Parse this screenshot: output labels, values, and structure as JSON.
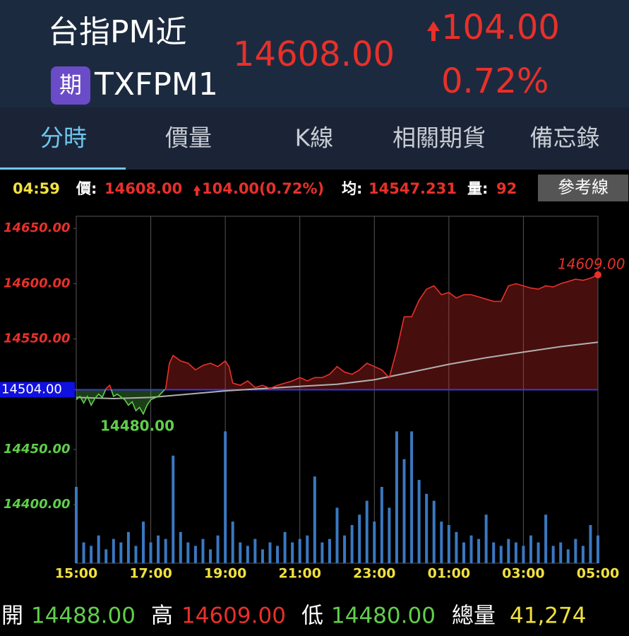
{
  "header": {
    "title": "台指PM近",
    "badge": "期",
    "code": "TXFPM1",
    "price": "14608.00",
    "change": "104.00",
    "change_pct": "0.72%"
  },
  "tabs": [
    "分時",
    "價量",
    "K線",
    "相關期貨",
    "備忘錄"
  ],
  "info": {
    "time": "04:59",
    "price_label": "價:",
    "price": "14608.00",
    "change": "104.00(0.72%)",
    "avg_label": "均:",
    "avg": "14547.231",
    "vol_label": "量:",
    "volume": "92",
    "button": "參考線"
  },
  "chart_data": {
    "type": "line",
    "xlim": [
      0,
      14
    ],
    "xticks": [
      {
        "value": 0,
        "label": "15:00"
      },
      {
        "value": 2,
        "label": "17:00"
      },
      {
        "value": 4,
        "label": "19:00"
      },
      {
        "value": 6,
        "label": "21:00"
      },
      {
        "value": 8,
        "label": "23:00"
      },
      {
        "value": 10,
        "label": "01:00"
      },
      {
        "value": 12,
        "label": "03:00"
      },
      {
        "value": 14,
        "label": "05:00"
      }
    ],
    "ylim": [
      14347,
      14661
    ],
    "yticks": [
      {
        "value": 14650,
        "label": "14650.00"
      },
      {
        "value": 14600,
        "label": "14600.00"
      },
      {
        "value": 14550,
        "label": "14550.00"
      },
      {
        "value": 14450,
        "label": "14450.00"
      },
      {
        "value": 14400,
        "label": "14400.00"
      }
    ],
    "reference": {
      "value": 14504,
      "label": "14504.00",
      "color": "#3a3ad8"
    },
    "up_color": "#e8302a",
    "down_color": "#5fcf4a",
    "series": [
      {
        "x": [
          0,
          0.1,
          0.2,
          0.3,
          0.4,
          0.5,
          0.6,
          0.7,
          0.8,
          0.9,
          1.0,
          1.1,
          1.3,
          1.4,
          1.5,
          1.6,
          1.7,
          1.8,
          1.9,
          2.0,
          2.2,
          2.4,
          2.5,
          2.6,
          2.8,
          3.0,
          3.2,
          3.4,
          3.6,
          3.8,
          4.0,
          4.1,
          4.2,
          4.4,
          4.6,
          4.8,
          5.0,
          5.2,
          5.4,
          5.6,
          5.8,
          6.0,
          6.2,
          6.4,
          6.6,
          6.8,
          7.0,
          7.2,
          7.4,
          7.6,
          7.8,
          8.0,
          8.2,
          8.4,
          8.6,
          8.8,
          9.0,
          9.2,
          9.4,
          9.6,
          9.8,
          10.0,
          10.2,
          10.4,
          10.6,
          10.8,
          11.0,
          11.2,
          11.4,
          11.6,
          11.8,
          12.0,
          12.2,
          12.4,
          12.6,
          12.8,
          13.0,
          13.2,
          13.4,
          13.6,
          13.8,
          14.0
        ],
        "values": [
          14495,
          14498,
          14492,
          14498,
          14490,
          14496,
          14500,
          14497,
          14505,
          14508,
          14498,
          14500,
          14495,
          14490,
          14493,
          14485,
          14488,
          14482,
          14490,
          14495,
          14498,
          14505,
          14528,
          14535,
          14530,
          14528,
          14522,
          14526,
          14528,
          14525,
          14530,
          14525,
          14510,
          14508,
          14512,
          14506,
          14508,
          14505,
          14508,
          14510,
          14512,
          14515,
          14512,
          14515,
          14515,
          14518,
          14525,
          14520,
          14518,
          14522,
          14528,
          14525,
          14522,
          14515,
          14540,
          14570,
          14570,
          14585,
          14595,
          14598,
          14590,
          14592,
          14587,
          14590,
          14590,
          14588,
          14586,
          14584,
          14584,
          14598,
          14600,
          14598,
          14596,
          14595,
          14598,
          14597,
          14600,
          14602,
          14604,
          14603,
          14605,
          14608
        ]
      }
    ],
    "average": {
      "color": "#b0b0b0",
      "x": [
        0,
        1,
        2,
        3,
        4,
        5,
        6,
        7,
        8,
        9,
        10,
        11,
        12,
        13,
        14
      ],
      "values": [
        14497,
        14496,
        14497,
        14500,
        14503,
        14505,
        14507,
        14509,
        14513,
        14520,
        14527,
        14533,
        14538,
        14543,
        14547
      ]
    },
    "volume": {
      "color": "#3a78c0",
      "y2lim": [
        0,
        500
      ],
      "x": [
        0,
        0.2,
        0.4,
        0.6,
        0.8,
        1.0,
        1.2,
        1.4,
        1.6,
        1.8,
        2.0,
        2.2,
        2.4,
        2.6,
        2.8,
        3.0,
        3.2,
        3.4,
        3.6,
        3.8,
        4.0,
        4.2,
        4.4,
        4.6,
        4.8,
        5.0,
        5.2,
        5.4,
        5.6,
        5.8,
        6.0,
        6.2,
        6.4,
        6.6,
        6.8,
        7.0,
        7.2,
        7.4,
        7.6,
        7.8,
        8.0,
        8.2,
        8.4,
        8.6,
        8.8,
        9.0,
        9.2,
        9.4,
        9.6,
        9.8,
        10.0,
        10.2,
        10.4,
        10.6,
        10.8,
        11.0,
        11.2,
        11.4,
        11.6,
        11.8,
        12.0,
        12.2,
        12.4,
        12.6,
        12.8,
        13.0,
        13.2,
        13.4,
        13.6,
        13.8,
        14.0
      ],
      "values": [
        110,
        30,
        25,
        40,
        20,
        35,
        30,
        45,
        25,
        60,
        30,
        40,
        35,
        155,
        45,
        30,
        25,
        35,
        20,
        40,
        190,
        60,
        30,
        25,
        35,
        20,
        30,
        25,
        45,
        30,
        35,
        40,
        125,
        30,
        35,
        80,
        40,
        55,
        70,
        90,
        60,
        110,
        80,
        190,
        150,
        190,
        120,
        100,
        90,
        60,
        55,
        45,
        30,
        40,
        35,
        70,
        30,
        25,
        35,
        30,
        25,
        40,
        30,
        70,
        25,
        30,
        20,
        35,
        25,
        55,
        40
      ]
    },
    "high_label": "14609.00",
    "low_label": "14480.00"
  },
  "footer": {
    "open_label": "開",
    "open": "14488.00",
    "high_label": "高",
    "high": "14609.00",
    "low_label": "低",
    "low": "14480.00",
    "total_label": "總量",
    "total": "41,274"
  }
}
